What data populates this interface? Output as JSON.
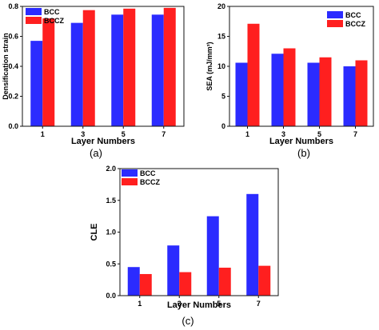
{
  "colors": {
    "BCC": "#2b2bff",
    "BCCZ": "#ff1f1f",
    "axis": "#111111"
  },
  "chart_data": [
    {
      "type": "bar",
      "panel_label": "(a)",
      "categories": [
        "1",
        "3",
        "5",
        "7"
      ],
      "series": [
        {
          "name": "BCC",
          "values": [
            0.57,
            0.69,
            0.745,
            0.745
          ]
        },
        {
          "name": "BCCZ",
          "values": [
            0.72,
            0.775,
            0.785,
            0.79
          ]
        }
      ],
      "xlabel": "Layer Numbers",
      "ylabel": "Densification strain",
      "ylim": [
        0,
        0.8
      ],
      "yticks": [
        "0.0",
        "0.2",
        "0.4",
        "0.6",
        "0.8"
      ],
      "yticks_values": [
        0,
        0.2,
        0.4,
        0.6,
        0.8
      ],
      "legend": "top-left",
      "grid": false
    },
    {
      "type": "bar",
      "panel_label": "(b)",
      "categories": [
        "1",
        "3",
        "5",
        "7"
      ],
      "series": [
        {
          "name": "BCC",
          "values": [
            10.6,
            12.1,
            10.6,
            10.0
          ]
        },
        {
          "name": "BCCZ",
          "values": [
            17.1,
            13.0,
            11.5,
            11.0
          ]
        }
      ],
      "xlabel": "Layer Numbers",
      "ylabel": "SEA (mJ/mm³)",
      "ylim": [
        0,
        20
      ],
      "yticks": [
        "0",
        "5",
        "10",
        "15",
        "20"
      ],
      "yticks_values": [
        0,
        5,
        10,
        15,
        20
      ],
      "legend": "top-right",
      "grid": false
    },
    {
      "type": "bar",
      "panel_label": "(c)",
      "categories": [
        "1",
        "3",
        "5",
        "7"
      ],
      "series": [
        {
          "name": "BCC",
          "values": [
            0.45,
            0.79,
            1.25,
            1.6
          ]
        },
        {
          "name": "BCCZ",
          "values": [
            0.34,
            0.37,
            0.44,
            0.47
          ]
        }
      ],
      "xlabel": "Layer Numbers",
      "ylabel": "CLE",
      "ylim": [
        0,
        2.0
      ],
      "yticks": [
        "0.0",
        "0.5",
        "1.0",
        "1.5",
        "2.0"
      ],
      "yticks_values": [
        0,
        0.5,
        1.0,
        1.5,
        2.0
      ],
      "legend": "top-left",
      "grid": false
    }
  ]
}
